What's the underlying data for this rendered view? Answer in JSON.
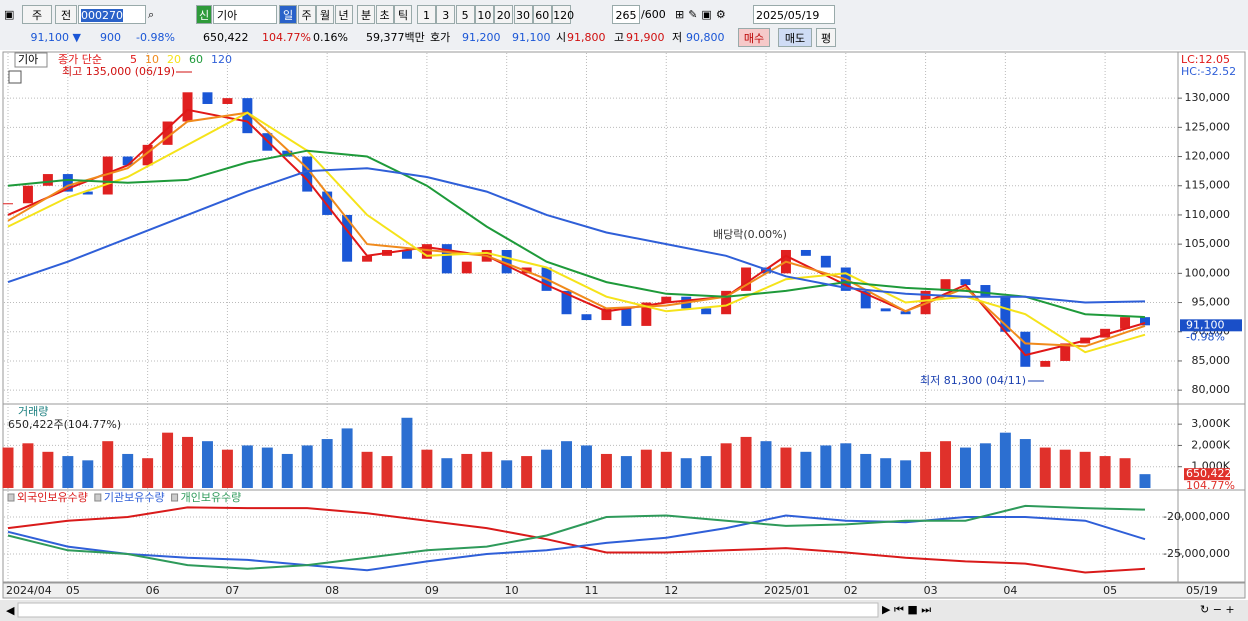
{
  "toolbar": {
    "period_type": "주",
    "mode": "전",
    "code": "000270",
    "name_badge": "신",
    "name": "기아",
    "intervals": [
      "일",
      "주",
      "월",
      "년",
      "분",
      "초",
      "틱"
    ],
    "minutes": [
      "1",
      "3",
      "5",
      "10",
      "20",
      "30",
      "60",
      "120"
    ],
    "count": "265",
    "max": "/600",
    "date": "2025/05/19"
  },
  "quote": {
    "price": "91,100 ▼",
    "change": "900",
    "change_rate": "-0.98%",
    "volume": "650,422",
    "volume_rate": "104.77%",
    "turnover": "0.16%",
    "amount": "59,377백만",
    "ask_label": "호가",
    "ask": "91,200",
    "bid": "91,100",
    "open_label": "시",
    "open": "91,800",
    "high_label": "고",
    "high": "91,900",
    "low_label": "저",
    "low": "90,800",
    "buy": "매수",
    "sell": "매도",
    "eval": "평"
  },
  "chart_data": [
    {
      "type": "candlestick",
      "title": "기아",
      "legend_title": "종가 단순",
      "lc": "LC:12.05",
      "hc": "HC:-32.52",
      "annotations": [
        "최고 135,000 (06/19)",
        "최저 81,300 (04/11)",
        "배당락(0.00%)"
      ],
      "up_color": "#e02020",
      "down_color": "#1a56d6",
      "xlim": [
        0,
        57
      ],
      "ylim": [
        77800,
        137900
      ],
      "yticks": [
        {
          "value": 80000,
          "label": "80,000"
        },
        {
          "value": 85000,
          "label": "85,000"
        },
        {
          "value": 90000,
          "label": "90,000"
        },
        {
          "value": 95000,
          "label": "95,000"
        },
        {
          "value": 100000,
          "label": "100,000"
        },
        {
          "value": 105000,
          "label": "105,000"
        },
        {
          "value": 110000,
          "label": "110,000"
        },
        {
          "value": 115000,
          "label": "115,000"
        },
        {
          "value": 120000,
          "label": "120,000"
        },
        {
          "value": 125000,
          "label": "125,000"
        },
        {
          "value": 130000,
          "label": "130,000"
        }
      ],
      "close": [
        112000,
        115000,
        117000,
        114000,
        113500,
        120000,
        118500,
        122000,
        126000,
        131000,
        129000,
        130000,
        124000,
        121000,
        120000,
        114000,
        110000,
        102000,
        103000,
        104000,
        102500,
        105000,
        100000,
        102000,
        104000,
        100000,
        101000,
        97000,
        93000,
        92000,
        94000,
        91000,
        95000,
        96000,
        94000,
        93000,
        97000,
        101000,
        100000,
        104000,
        103000,
        101000,
        97000,
        94000,
        93500,
        93000,
        97000,
        99000,
        98000,
        96000,
        90000,
        84000,
        85000,
        88000,
        89000,
        90500,
        92500,
        91100
      ],
      "series": [
        {
          "name": "5",
          "color": "#e01818",
          "x": [
            0,
            3,
            6,
            9,
            12,
            15,
            18,
            21,
            24,
            27,
            30,
            33,
            36,
            39,
            42,
            45,
            48,
            51,
            54,
            57
          ],
          "values": [
            110000,
            114500,
            118500,
            128000,
            126000,
            116000,
            103000,
            104500,
            103000,
            98000,
            93500,
            95000,
            96000,
            103000,
            98000,
            93500,
            98000,
            86000,
            88500,
            91500
          ]
        },
        {
          "name": "10",
          "color": "#f08a1c",
          "x": [
            0,
            3,
            6,
            9,
            12,
            15,
            18,
            21,
            24,
            27,
            30,
            33,
            36,
            39,
            42,
            45,
            48,
            51,
            54,
            57
          ],
          "values": [
            109000,
            115000,
            118000,
            126000,
            127500,
            118000,
            105000,
            104000,
            103000,
            99000,
            94000,
            94500,
            96000,
            102000,
            99000,
            93500,
            97500,
            88000,
            87500,
            91000
          ]
        },
        {
          "name": "20",
          "color": "#f5e31a",
          "x": [
            0,
            3,
            6,
            9,
            12,
            15,
            18,
            21,
            24,
            27,
            30,
            33,
            36,
            39,
            42,
            45,
            48,
            51,
            54,
            57
          ],
          "values": [
            108000,
            113000,
            116500,
            122000,
            127500,
            121000,
            110000,
            103000,
            103500,
            101000,
            96000,
            93500,
            94500,
            99000,
            100000,
            95000,
            96000,
            93000,
            86500,
            89500
          ]
        },
        {
          "name": "60",
          "color": "#1e9a3a",
          "x": [
            0,
            3,
            6,
            9,
            12,
            15,
            18,
            21,
            24,
            27,
            30,
            33,
            36,
            39,
            42,
            45,
            48,
            51,
            54,
            57
          ],
          "values": [
            115000,
            116000,
            115500,
            116000,
            119000,
            121000,
            120000,
            115000,
            108000,
            102000,
            98500,
            96500,
            96000,
            97000,
            98500,
            97500,
            97000,
            96000,
            93000,
            92500
          ]
        },
        {
          "name": "120",
          "color": "#2f5fd8",
          "x": [
            0,
            3,
            6,
            9,
            12,
            15,
            18,
            21,
            24,
            27,
            30,
            33,
            36,
            39,
            42,
            45,
            48,
            51,
            54,
            57
          ],
          "values": [
            98500,
            102000,
            106000,
            110000,
            114000,
            117500,
            118000,
            116500,
            114000,
            110000,
            107000,
            105000,
            103000,
            99500,
            97500,
            96500,
            96000,
            96000,
            95000,
            95200
          ]
        }
      ],
      "last": {
        "value": 91100,
        "label": "91,100"
      },
      "last_change": "-0.98%"
    },
    {
      "type": "bar",
      "title": "거래량",
      "subtitle": "650,422주(104.77%)",
      "xlim": [
        0,
        57
      ],
      "ylim": [
        0,
        3900
      ],
      "yticks": [
        {
          "value": 1000,
          "label": "1,000K"
        },
        {
          "value": 2000,
          "label": "2,000K"
        },
        {
          "value": 3000,
          "label": "3,000K"
        }
      ],
      "values": [
        1900,
        2100,
        1700,
        1500,
        1300,
        2200,
        1600,
        1400,
        2600,
        2400,
        2200,
        1800,
        2000,
        1900,
        1600,
        2000,
        2300,
        2800,
        1700,
        1500,
        3300,
        1800,
        1400,
        1600,
        1700,
        1300,
        1500,
        1800,
        2200,
        2000,
        1600,
        1500,
        1800,
        1700,
        1400,
        1500,
        2100,
        2400,
        2200,
        1900,
        1700,
        2000,
        2100,
        1600,
        1400,
        1300,
        1700,
        2200,
        1900,
        2100,
        2600,
        2300,
        1900,
        1800,
        1700,
        1500,
        1400,
        650
      ],
      "last_label": "650,422",
      "last_rate": "104.77%"
    },
    {
      "type": "line",
      "xlim": [
        0,
        57
      ],
      "ylim": [
        -28780000,
        -16490000
      ],
      "yticks": [
        {
          "value": -25000000,
          "label": "-25,000,000"
        },
        {
          "value": -20000000,
          "label": "-20,000,000"
        }
      ],
      "xticks": [
        {
          "value": 0,
          "label": "2024/04"
        },
        {
          "value": 3,
          "label": "05"
        },
        {
          "value": 7,
          "label": "06"
        },
        {
          "value": 11,
          "label": "07"
        },
        {
          "value": 16,
          "label": "08"
        },
        {
          "value": 21,
          "label": "09"
        },
        {
          "value": 25,
          "label": "10"
        },
        {
          "value": 29,
          "label": "11"
        },
        {
          "value": 33,
          "label": "12"
        },
        {
          "value": 38,
          "label": "2025/01"
        },
        {
          "value": 42,
          "label": "02"
        },
        {
          "value": 46,
          "label": "03"
        },
        {
          "value": 50,
          "label": "04"
        },
        {
          "value": 55,
          "label": "05"
        }
      ],
      "last_date": "05/19",
      "series": [
        {
          "name": "외국인보유수량",
          "color": "#d91a1a",
          "x": [
            0,
            3,
            6,
            9,
            12,
            15,
            18,
            21,
            24,
            27,
            30,
            33,
            36,
            39,
            42,
            45,
            48,
            51,
            54,
            57
          ],
          "values": [
            -21500000,
            -20500000,
            -20000000,
            -18700000,
            -18800000,
            -18800000,
            -19500000,
            -20500000,
            -21500000,
            -23000000,
            -24800000,
            -24800000,
            -24500000,
            -24200000,
            -24800000,
            -25500000,
            -26000000,
            -26300000,
            -27500000,
            -27000000
          ]
        },
        {
          "name": "기관보유수량",
          "color": "#2f5fd8",
          "x": [
            0,
            3,
            6,
            9,
            12,
            15,
            18,
            21,
            24,
            27,
            30,
            33,
            36,
            39,
            42,
            45,
            48,
            51,
            54,
            57
          ],
          "values": [
            -22000000,
            -24000000,
            -25000000,
            -25500000,
            -25800000,
            -26500000,
            -27200000,
            -26000000,
            -25000000,
            -24500000,
            -23500000,
            -22800000,
            -21500000,
            -19800000,
            -20500000,
            -20700000,
            -20000000,
            -20000000,
            -20500000,
            -23000000
          ]
        },
        {
          "name": "개인보유수량",
          "color": "#2e9a5a",
          "x": [
            0,
            3,
            6,
            9,
            12,
            15,
            18,
            21,
            24,
            27,
            30,
            33,
            36,
            39,
            42,
            45,
            48,
            51,
            54,
            57
          ],
          "values": [
            -22500000,
            -24500000,
            -25000000,
            -26500000,
            -27000000,
            -26500000,
            -25500000,
            -24500000,
            -24000000,
            -22500000,
            -20000000,
            -19800000,
            -20500000,
            -21200000,
            -21000000,
            -20500000,
            -20500000,
            -18500000,
            -18800000,
            -19000000
          ]
        }
      ]
    }
  ]
}
